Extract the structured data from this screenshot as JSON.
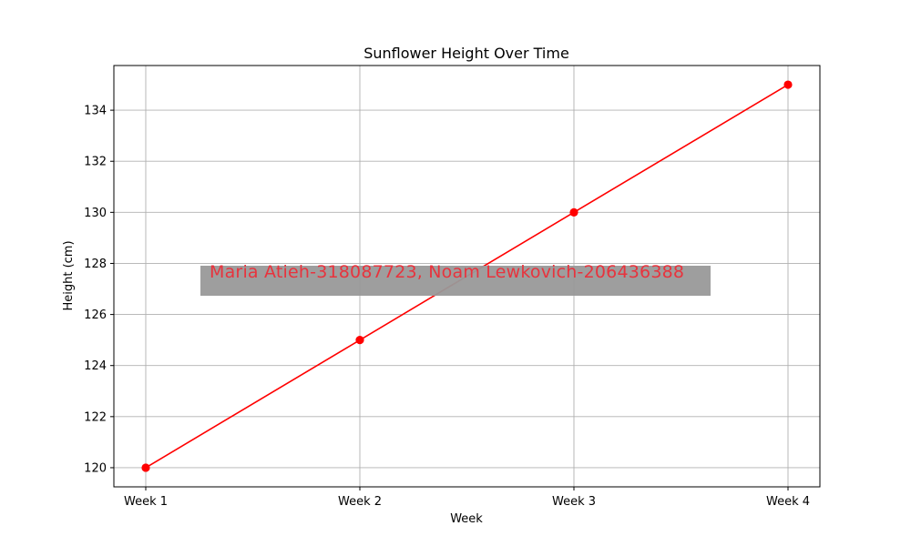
{
  "chart_data": {
    "type": "line",
    "title": "Sunflower Height Over Time",
    "xlabel": "Week",
    "ylabel": "Height (cm)",
    "categories": [
      "Week 1",
      "Week 2",
      "Week 3",
      "Week 4"
    ],
    "series": [
      {
        "values": [
          120,
          125,
          130,
          135
        ],
        "color": "#ff0000",
        "marker": "circle"
      }
    ],
    "ylim": [
      119.25,
      135.75
    ],
    "yticks": [
      120,
      122,
      124,
      126,
      128,
      130,
      132,
      134
    ],
    "grid": true,
    "legend": "none",
    "annotation": {
      "text": "Maria Atieh-318087723, Noam Lewkovich-206436388",
      "text_color": "#e8333d",
      "box_color": "#999999"
    }
  },
  "colors": {
    "grid": "#b0b0b0",
    "axes": "#000000"
  }
}
